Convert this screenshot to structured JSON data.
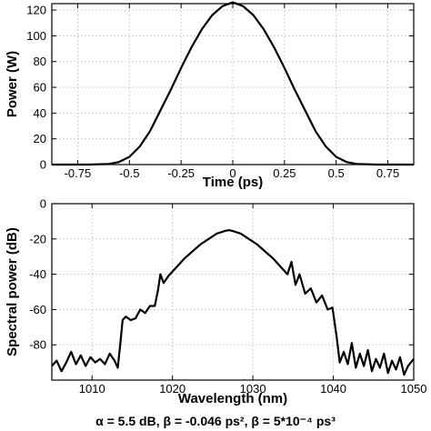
{
  "chart_data": [
    {
      "type": "line",
      "title": "",
      "xlabel": "Time (ps)",
      "ylabel": "Power (W)",
      "xlim": [
        -0.875,
        0.875
      ],
      "ylim": [
        0,
        125
      ],
      "xticks": [
        -0.75,
        -0.5,
        -0.25,
        0,
        0.25,
        0.5,
        0.75
      ],
      "xtick_labels": [
        "-0.75",
        "-0.5",
        "-0.25",
        "0",
        "0.25",
        "0.5",
        "0.75"
      ],
      "yticks": [
        0,
        20,
        40,
        60,
        80,
        100,
        120
      ],
      "ytick_labels": [
        "0",
        "20",
        "40",
        "60",
        "80",
        "100",
        "120"
      ],
      "grid": true,
      "series": [
        {
          "x": [
            -0.875,
            -0.8,
            -0.7,
            -0.6,
            -0.55,
            -0.5,
            -0.45,
            -0.4,
            -0.35,
            -0.3,
            -0.25,
            -0.2,
            -0.15,
            -0.1,
            -0.05,
            0,
            0.05,
            0.1,
            0.15,
            0.2,
            0.25,
            0.3,
            0.35,
            0.4,
            0.45,
            0.5,
            0.55,
            0.6,
            0.7,
            0.8,
            0.875
          ],
          "y": [
            0,
            0,
            0,
            0.5,
            2,
            6,
            14,
            26,
            42,
            58,
            75,
            91,
            105,
            116,
            123,
            126,
            123,
            116,
            105,
            91,
            75,
            58,
            42,
            26,
            14,
            6,
            2,
            0.5,
            0,
            0,
            0
          ]
        }
      ]
    },
    {
      "type": "line",
      "title": "",
      "xlabel": "Wavelength (nm)",
      "ylabel": "Spectral power (dB)",
      "xlim": [
        1005,
        1050
      ],
      "ylim": [
        -100,
        0
      ],
      "xticks": [
        1010,
        1020,
        1030,
        1040,
        1050
      ],
      "xtick_labels": [
        "1010",
        "1020",
        "1030",
        "1040",
        "1050"
      ],
      "yticks": [
        -100,
        -80,
        -60,
        -40,
        -20,
        0
      ],
      "ytick_labels": [
        "",
        "-80",
        "-60",
        "-40",
        "-20",
        "0"
      ],
      "grid": true,
      "series": [
        {
          "x": [
            1005,
            1005.6,
            1006.2,
            1006.8,
            1007.4,
            1008.0,
            1008.6,
            1009.2,
            1009.8,
            1010.4,
            1011.0,
            1011.6,
            1012.2,
            1012.8,
            1013.2,
            1013.5,
            1013.8,
            1014.2,
            1014.8,
            1015.4,
            1016.0,
            1016.6,
            1017.2,
            1017.8,
            1018.2,
            1018.5,
            1018.9,
            1019.5,
            1020.5,
            1021.5,
            1022.5,
            1023.5,
            1024.5,
            1025.5,
            1026.5,
            1027.0,
            1027.5,
            1028.5,
            1029.5,
            1030.5,
            1031.5,
            1032.5,
            1033.5,
            1034.3,
            1034.8,
            1035.3,
            1035.8,
            1036.5,
            1037.2,
            1037.9,
            1038.6,
            1039.3,
            1039.9,
            1040.4,
            1040.8,
            1041.3,
            1041.8,
            1042.3,
            1042.8,
            1043.3,
            1043.8,
            1044.3,
            1044.8,
            1045.3,
            1045.8,
            1046.3,
            1046.8,
            1047.3,
            1047.8,
            1048.3,
            1048.8,
            1049.3,
            1050
          ],
          "y": [
            -92,
            -89,
            -95,
            -90,
            -84,
            -91,
            -86,
            -92,
            -87,
            -90,
            -88,
            -91,
            -85,
            -89,
            -93,
            -80,
            -66,
            -64,
            -66,
            -65,
            -60,
            -62,
            -58,
            -58,
            -49,
            -40,
            -45,
            -41,
            -36,
            -31,
            -27,
            -23,
            -20,
            -17,
            -15.5,
            -15,
            -15.5,
            -17,
            -20,
            -23,
            -27,
            -31,
            -36,
            -40,
            -33,
            -46,
            -40,
            -51,
            -48,
            -56,
            -52,
            -60,
            -59,
            -75,
            -90,
            -84,
            -91,
            -79,
            -93,
            -85,
            -92,
            -83,
            -95,
            -88,
            -93,
            -85,
            -96,
            -89,
            -94,
            -87,
            -97,
            -92,
            -88
          ]
        }
      ]
    }
  ],
  "caption": "α = 5.5 dB,  β  = -0.046 ps²,  β  = 5*10⁻⁴ ps³"
}
